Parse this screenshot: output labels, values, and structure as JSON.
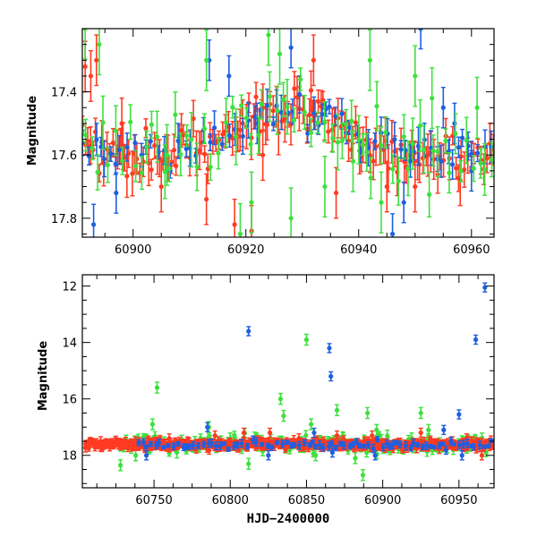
{
  "colors": {
    "blue": "#1f5fe0",
    "green": "#3ee03e",
    "red": "#ff3b22",
    "black": "#000000"
  },
  "chart_data": [
    {
      "type": "scatter",
      "panel": "top",
      "title": "",
      "xlabel": "",
      "ylabel": "Magnitude",
      "xlim": [
        60891,
        60964
      ],
      "ylim": [
        17.86,
        17.2
      ],
      "y_inverted": true,
      "xticks": [
        60900,
        60920,
        60940,
        60960
      ],
      "xtick_labels": [
        "60900",
        "60920",
        "60940",
        "60960"
      ],
      "yticks": [
        17.4,
        17.6,
        17.8
      ],
      "ytick_labels": [
        "17.4",
        "17.6",
        "17.8"
      ],
      "series": [
        {
          "name": "red",
          "color": "red",
          "error_bars": true,
          "noise": 0.035,
          "err": 0.05,
          "seed": 11,
          "step": 0.45,
          "trend_x": [
            60891,
            60895,
            60900,
            60910,
            60918,
            60924,
            60930,
            60936,
            60942,
            60950,
            60964
          ],
          "trend_y": [
            17.55,
            17.6,
            17.62,
            17.58,
            17.5,
            17.47,
            17.45,
            17.5,
            17.57,
            17.6,
            17.6
          ],
          "outliers_x": [
            60891.5,
            60892.5,
            60893.5,
            60898,
            60905,
            60913,
            60918,
            60921,
            60923,
            60932,
            60936,
            60945,
            60950,
            60958
          ],
          "outliers_y": [
            17.32,
            17.35,
            17.3,
            17.5,
            17.7,
            17.74,
            17.82,
            17.84,
            17.6,
            17.3,
            17.72,
            17.7,
            17.7,
            17.68
          ]
        },
        {
          "name": "blue",
          "color": "blue",
          "error_bars": true,
          "noise": 0.03,
          "err": 0.04,
          "seed": 23,
          "step": 0.9,
          "trend_x": [
            60891,
            60895,
            60900,
            60910,
            60918,
            60924,
            60930,
            60936,
            60942,
            60950,
            60964
          ],
          "trend_y": [
            17.58,
            17.6,
            17.6,
            17.58,
            17.52,
            17.47,
            17.46,
            17.5,
            17.56,
            17.59,
            17.6
          ],
          "outliers_x": [
            60893,
            60897,
            60913.5,
            60917,
            60922,
            60928,
            60946,
            60948,
            60951,
            60955,
            60957,
            60960
          ],
          "outliers_y": [
            17.82,
            17.72,
            17.3,
            17.35,
            17.5,
            17.26,
            17.85,
            17.75,
            17.2,
            17.45,
            17.5,
            17.65
          ]
        },
        {
          "name": "green",
          "color": "green",
          "error_bars": true,
          "noise": 0.06,
          "err": 0.06,
          "seed": 37,
          "step": 0.9,
          "trend_x": [
            60891,
            60895,
            60900,
            60910,
            60918,
            60924,
            60930,
            60936,
            60942,
            60950,
            60964
          ],
          "trend_y": [
            17.58,
            17.6,
            17.6,
            17.58,
            17.5,
            17.47,
            17.45,
            17.5,
            17.57,
            17.6,
            17.6
          ],
          "outliers_x": [
            60891.5,
            60894,
            60906,
            60913,
            60919,
            60921,
            60924,
            60926,
            60928,
            60934,
            60939,
            60942,
            60944,
            60950,
            60953,
            60961
          ],
          "outliers_y": [
            17.2,
            17.25,
            17.6,
            17.3,
            17.85,
            17.75,
            17.22,
            17.28,
            17.8,
            17.7,
            17.62,
            17.3,
            17.75,
            17.35,
            17.42,
            17.45
          ]
        }
      ]
    },
    {
      "type": "scatter",
      "panel": "bottom",
      "title": "",
      "xlabel": "HJD−2400000",
      "ylabel": "Magnitude",
      "xlim": [
        60703,
        60973
      ],
      "ylim": [
        19.15,
        11.6
      ],
      "y_inverted": true,
      "xticks": [
        60750,
        60800,
        60850,
        60900,
        60950
      ],
      "xtick_labels": [
        "60750",
        "60800",
        "60850",
        "60900",
        "60950"
      ],
      "yticks": [
        12,
        14,
        16,
        18
      ],
      "ytick_labels": [
        "12",
        "14",
        "16",
        "18"
      ],
      "series": [
        {
          "name": "green",
          "color": "green",
          "error_bars": true,
          "noise": 0.15,
          "err": 0.12,
          "seed": 51,
          "step": 1.1,
          "xstart": 60728,
          "trend_x": [
            60705,
            60973
          ],
          "trend_y": [
            17.6,
            17.6
          ],
          "outliers_x": [
            60728,
            60738,
            60749,
            60752,
            60765,
            60786,
            60800,
            60812,
            60818,
            60833,
            60835,
            60850,
            60853,
            60856,
            60870,
            60874,
            60882,
            60887,
            60890,
            60896,
            60903,
            60919,
            60925,
            60930,
            60952
          ],
          "outliers_y": [
            18.35,
            18.0,
            16.9,
            15.6,
            17.9,
            17.0,
            17.4,
            18.3,
            17.5,
            16.0,
            16.6,
            13.9,
            16.9,
            18.0,
            16.4,
            17.4,
            18.1,
            18.7,
            16.5,
            17.1,
            17.3,
            17.4,
            16.5,
            17.1,
            17.5
          ]
        },
        {
          "name": "red",
          "color": "red",
          "error_bars": true,
          "noise": 0.08,
          "err": 0.1,
          "seed": 63,
          "step": 0.35,
          "xstart": 60705,
          "trend_x": [
            60705,
            60973
          ],
          "trend_y": [
            17.62,
            17.62
          ],
          "outliers_x": [
            60715,
            60760,
            60790,
            60809,
            60826,
            60845,
            60870,
            60893,
            60925,
            60955,
            60965
          ],
          "outliers_y": [
            17.5,
            17.4,
            17.3,
            17.2,
            17.2,
            17.4,
            17.3,
            17.3,
            17.2,
            17.4,
            18.0
          ]
        },
        {
          "name": "blue",
          "color": "blue",
          "error_bars": true,
          "noise": 0.08,
          "err": 0.1,
          "seed": 77,
          "step": 2.5,
          "xstart": 60740,
          "trend_x": [
            60705,
            60973
          ],
          "trend_y": [
            17.62,
            17.62
          ],
          "outliers_x": [
            60745,
            60785,
            60812,
            60825,
            60855,
            60865,
            60866,
            60867,
            60895,
            60940,
            60950,
            60952,
            60961,
            60967
          ],
          "outliers_y": [
            18.0,
            17.0,
            13.6,
            18.0,
            17.2,
            14.2,
            15.2,
            17.9,
            18.0,
            17.1,
            16.55,
            18.0,
            13.9,
            12.05
          ]
        }
      ]
    }
  ]
}
